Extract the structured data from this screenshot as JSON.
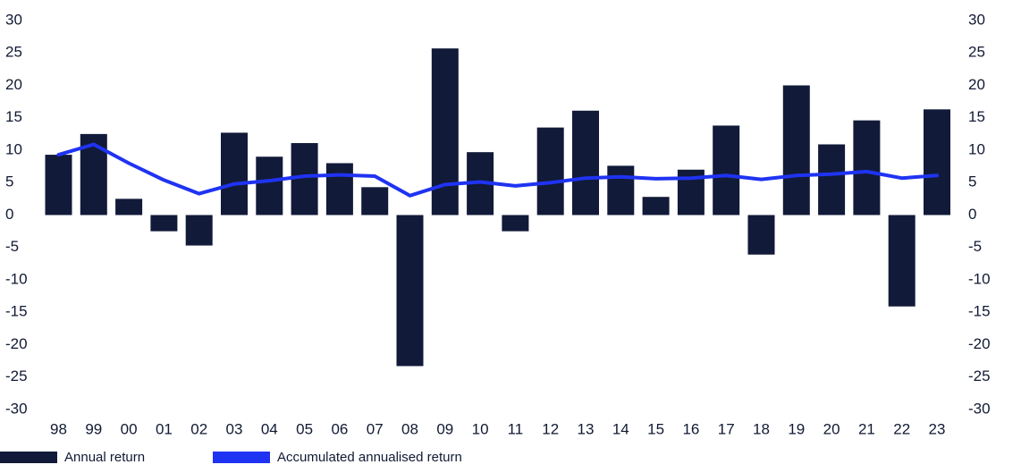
{
  "chart_data": {
    "type": "bar",
    "categories": [
      "98",
      "99",
      "00",
      "01",
      "02",
      "03",
      "04",
      "05",
      "06",
      "07",
      "08",
      "09",
      "10",
      "11",
      "12",
      "13",
      "14",
      "15",
      "16",
      "17",
      "18",
      "19",
      "20",
      "21",
      "22",
      "23"
    ],
    "series": [
      {
        "name": "Annual return",
        "type": "bar",
        "color": "#111a38",
        "values": [
          9.3,
          12.5,
          2.5,
          -2.5,
          -4.7,
          12.7,
          9.0,
          11.1,
          8.0,
          4.3,
          -23.3,
          25.7,
          9.7,
          -2.5,
          13.5,
          16.1,
          7.6,
          2.8,
          7.0,
          13.8,
          -6.1,
          20.0,
          10.9,
          14.6,
          -14.1,
          16.3
        ]
      },
      {
        "name": "Accumulated annualised return",
        "type": "line",
        "color": "#1f33f2",
        "values": [
          9.3,
          10.9,
          8.0,
          5.4,
          3.3,
          4.8,
          5.3,
          6.0,
          6.2,
          6.0,
          3.0,
          4.7,
          5.1,
          4.5,
          5.0,
          5.7,
          5.9,
          5.6,
          5.7,
          6.1,
          5.5,
          6.1,
          6.3,
          6.7,
          5.7,
          6.1
        ]
      }
    ],
    "ylim": [
      -30,
      30
    ],
    "yticks": [
      30,
      25,
      20,
      15,
      10,
      5,
      0,
      -5,
      -10,
      -15,
      -20,
      -25,
      -30
    ],
    "grid": false,
    "legend_position": "bottom-left"
  }
}
